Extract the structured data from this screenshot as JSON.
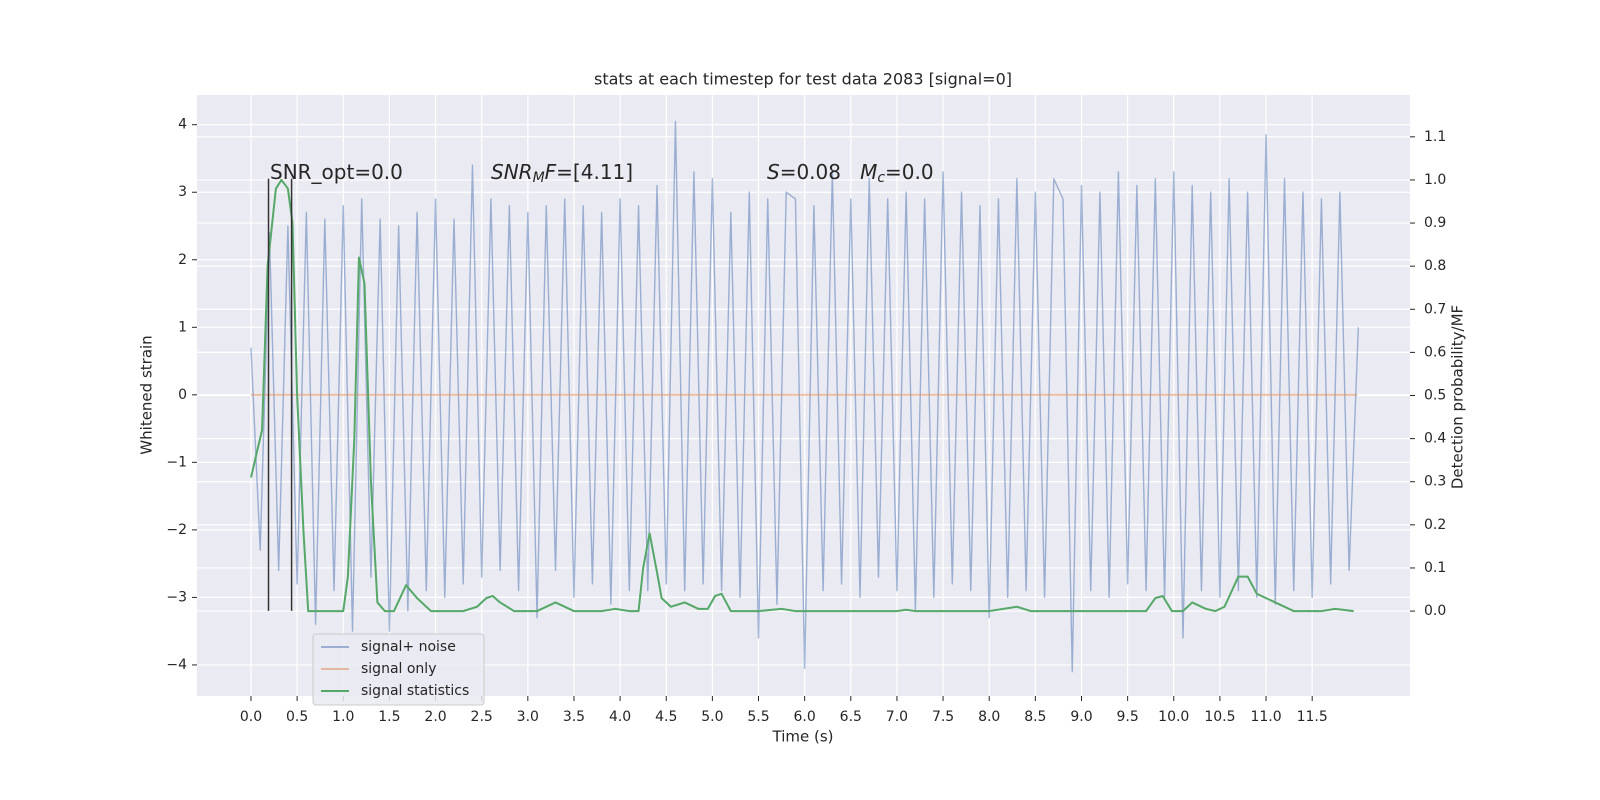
{
  "chart_data": {
    "type": "line",
    "title": "stats at each timestep for test data 2083 [signal=0]",
    "xlabel": "Time (s)",
    "ylabel": "Whitened strain",
    "y2label": "Detection probability/MF",
    "xlim": [
      -0.585,
      12.56
    ],
    "ylim": [
      -4.46,
      4.44
    ],
    "y2lim": [
      -0.197,
      1.197
    ],
    "xticks": [
      {
        "value": 0,
        "label": "0.0"
      },
      {
        "value": 0.5,
        "label": "0.5"
      },
      {
        "value": 1,
        "label": "1.0"
      },
      {
        "value": 1.5,
        "label": "1.5"
      },
      {
        "value": 2,
        "label": "2.0"
      },
      {
        "value": 2.5,
        "label": "2.5"
      },
      {
        "value": 3,
        "label": "3.0"
      },
      {
        "value": 3.5,
        "label": "3.5"
      },
      {
        "value": 4,
        "label": "4.0"
      },
      {
        "value": 4.5,
        "label": "4.5"
      },
      {
        "value": 5,
        "label": "5.0"
      },
      {
        "value": 5.5,
        "label": "5.5"
      },
      {
        "value": 6,
        "label": "6.0"
      },
      {
        "value": 6.5,
        "label": "6.5"
      },
      {
        "value": 7,
        "label": "7.0"
      },
      {
        "value": 7.5,
        "label": "7.5"
      },
      {
        "value": 8,
        "label": "8.0"
      },
      {
        "value": 8.5,
        "label": "8.5"
      },
      {
        "value": 9,
        "label": "9.0"
      },
      {
        "value": 9.5,
        "label": "9.5"
      },
      {
        "value": 10,
        "label": "10.0"
      },
      {
        "value": 10.5,
        "label": "10.5"
      },
      {
        "value": 11,
        "label": "11.0"
      },
      {
        "value": 11.5,
        "label": "11.5"
      }
    ],
    "yticks": [
      {
        "value": -4,
        "label": "−4"
      },
      {
        "value": -3,
        "label": "−3"
      },
      {
        "value": -2,
        "label": "−2"
      },
      {
        "value": -1,
        "label": "−1"
      },
      0,
      1,
      2,
      3,
      4
    ],
    "y2ticks": [
      {
        "value": 0,
        "label": "0.0"
      },
      {
        "value": 0.1,
        "label": "0.1"
      },
      {
        "value": 0.2,
        "label": "0.2"
      },
      {
        "value": 0.3,
        "label": "0.3"
      },
      {
        "value": 0.4,
        "label": "0.4"
      },
      {
        "value": 0.5,
        "label": "0.5"
      },
      {
        "value": 0.6,
        "label": "0.6"
      },
      {
        "value": 0.7,
        "label": "0.7"
      },
      {
        "value": 0.8,
        "label": "0.8"
      },
      {
        "value": 0.9,
        "label": "0.9"
      },
      {
        "value": 1,
        "label": "1.0"
      },
      {
        "value": 1.1,
        "label": "1.1"
      }
    ],
    "grid": true,
    "legend": "lower left",
    "series": [
      {
        "name": "signal+ noise",
        "color": "#4c72b0",
        "alpha": 0.5,
        "axis": "y",
        "x": [
          0.0,
          0.1,
          0.2,
          0.3,
          0.4,
          0.5,
          0.6,
          0.7,
          0.8,
          0.9,
          1.0,
          1.1,
          1.2,
          1.3,
          1.4,
          1.5,
          1.6,
          1.7,
          1.8,
          1.9,
          2.0,
          2.1,
          2.2,
          2.3,
          2.4,
          2.5,
          2.6,
          2.7,
          2.8,
          2.9,
          3.0,
          3.1,
          3.2,
          3.3,
          3.4,
          3.5,
          3.6,
          3.7,
          3.8,
          3.9,
          4.0,
          4.1,
          4.2,
          4.3,
          4.4,
          4.5,
          4.6,
          4.7,
          4.8,
          4.9,
          5.0,
          5.1,
          5.2,
          5.3,
          5.4,
          5.5,
          5.6,
          5.7,
          5.8,
          5.9,
          6.0,
          6.1,
          6.2,
          6.3,
          6.4,
          6.5,
          6.6,
          6.7,
          6.8,
          6.9,
          7.0,
          7.1,
          7.2,
          7.3,
          7.4,
          7.5,
          7.6,
          7.7,
          7.8,
          7.9,
          8.0,
          8.1,
          8.2,
          8.3,
          8.4,
          8.5,
          8.6,
          8.7,
          8.8,
          8.9,
          9.0,
          9.1,
          9.2,
          9.3,
          9.4,
          9.5,
          9.6,
          9.7,
          9.8,
          9.9,
          10.0,
          10.1,
          10.2,
          10.3,
          10.4,
          10.5,
          10.6,
          10.7,
          10.8,
          10.9,
          11.0,
          11.1,
          11.2,
          11.3,
          11.4,
          11.5,
          11.6,
          11.7,
          11.8,
          11.9,
          12.0
        ],
        "values": [
          0.7,
          -2.3,
          2.4,
          -2.6,
          2.5,
          -2.8,
          2.7,
          -3.4,
          2.6,
          -2.9,
          2.8,
          -3.5,
          2.9,
          -2.7,
          2.6,
          -3.5,
          2.5,
          -3.2,
          2.7,
          -2.9,
          2.9,
          -3.0,
          2.6,
          -2.8,
          3.4,
          -2.7,
          2.9,
          -2.6,
          2.8,
          -2.9,
          2.7,
          -3.3,
          2.8,
          -2.6,
          2.9,
          -3.0,
          2.8,
          -2.8,
          2.7,
          -3.1,
          2.9,
          -2.9,
          2.8,
          -2.9,
          3.1,
          -2.8,
          4.05,
          -2.9,
          3.3,
          -2.8,
          3.2,
          -2.9,
          2.7,
          -3.0,
          3.0,
          -3.6,
          2.9,
          -3.1,
          3.0,
          2.9,
          -4.05,
          2.8,
          -2.9,
          3.3,
          -2.8,
          2.9,
          -3.0,
          3.2,
          -2.7,
          2.9,
          -2.9,
          3.0,
          -3.2,
          2.9,
          -3.0,
          3.3,
          -2.8,
          3.0,
          -2.9,
          2.8,
          -3.3,
          2.9,
          -3.0,
          3.2,
          -2.9,
          3.0,
          -3.0,
          3.2,
          2.9,
          -4.1,
          3.1,
          -2.9,
          3.0,
          -3.0,
          3.3,
          -2.8,
          3.1,
          -2.9,
          3.2,
          -3.0,
          3.3,
          -3.6,
          3.1,
          -2.9,
          3.0,
          -3.0,
          3.2,
          -2.9,
          3.0,
          -3.0,
          3.85,
          -3.1,
          3.2,
          -2.9,
          3.0,
          -3.0,
          2.9,
          -2.8,
          3.0,
          -2.6,
          1.0
        ]
      },
      {
        "name": "signal only",
        "color": "#dd8452",
        "alpha": 0.5,
        "axis": "y",
        "x": [
          0.0,
          11.99
        ],
        "values": [
          0,
          0
        ]
      },
      {
        "name": "signal statistics",
        "color": "#55a868",
        "alpha": 1,
        "axis": "y2",
        "x": [
          0.0,
          0.12,
          0.18,
          0.27,
          0.33,
          0.4,
          0.45,
          0.5,
          0.57,
          0.62,
          0.9,
          1.0,
          1.05,
          1.12,
          1.17,
          1.23,
          1.3,
          1.37,
          1.45,
          1.55,
          1.68,
          1.8,
          1.95,
          2.3,
          2.45,
          2.55,
          2.62,
          2.7,
          2.85,
          3.1,
          3.3,
          3.5,
          3.8,
          3.95,
          4.1,
          4.2,
          4.25,
          4.32,
          4.4,
          4.45,
          4.55,
          4.7,
          4.85,
          4.95,
          5.03,
          5.1,
          5.2,
          5.5,
          5.75,
          5.9,
          7.0,
          7.1,
          7.2,
          8.0,
          8.3,
          8.45,
          9.7,
          9.8,
          9.88,
          9.98,
          10.1,
          10.2,
          10.35,
          10.45,
          10.55,
          10.7,
          10.8,
          10.9,
          11.0,
          11.1,
          11.3,
          11.6,
          11.75,
          11.95
        ],
        "values": [
          0.31,
          0.42,
          0.8,
          0.98,
          1.0,
          0.98,
          0.9,
          0.5,
          0.18,
          0.0,
          0.0,
          0.0,
          0.08,
          0.4,
          0.82,
          0.76,
          0.3,
          0.02,
          0.0,
          0.0,
          0.06,
          0.03,
          0.0,
          0.0,
          0.01,
          0.03,
          0.035,
          0.02,
          0.0,
          0.0,
          0.02,
          0.0,
          0.0,
          0.005,
          0.0,
          0.0,
          0.1,
          0.18,
          0.09,
          0.03,
          0.01,
          0.02,
          0.005,
          0.005,
          0.035,
          0.04,
          0.0,
          0.0,
          0.005,
          0.0,
          0.0,
          0.003,
          0.0,
          0.0,
          0.01,
          0.0,
          0.0,
          0.03,
          0.035,
          0.0,
          0.0,
          0.02,
          0.005,
          0.0,
          0.01,
          0.08,
          0.08,
          0.04,
          0.03,
          0.02,
          0.0,
          0.0,
          0.005,
          0.0
        ]
      }
    ],
    "vlines": {
      "x": [
        0.19,
        0.44
      ],
      "ymin": -3.2,
      "ymax": 3.2,
      "color": "#333333"
    },
    "annotations": [
      {
        "parts": [
          {
            "text": "SNR_opt=0.0"
          }
        ]
      },
      {
        "parts": [
          {
            "text": "SNR",
            "italic": true
          },
          {
            "text": "M",
            "italic": true,
            "sub": true
          },
          {
            "text": "F",
            "italic": true
          },
          {
            "text": "=[4.11]"
          }
        ]
      },
      {
        "parts": [
          {
            "text": "S",
            "italic": true
          },
          {
            "text": "=0.08   "
          },
          {
            "text": "M",
            "italic": true
          },
          {
            "text": "c",
            "italic": true,
            "sub": true
          },
          {
            "text": "=0.0"
          }
        ]
      }
    ]
  }
}
